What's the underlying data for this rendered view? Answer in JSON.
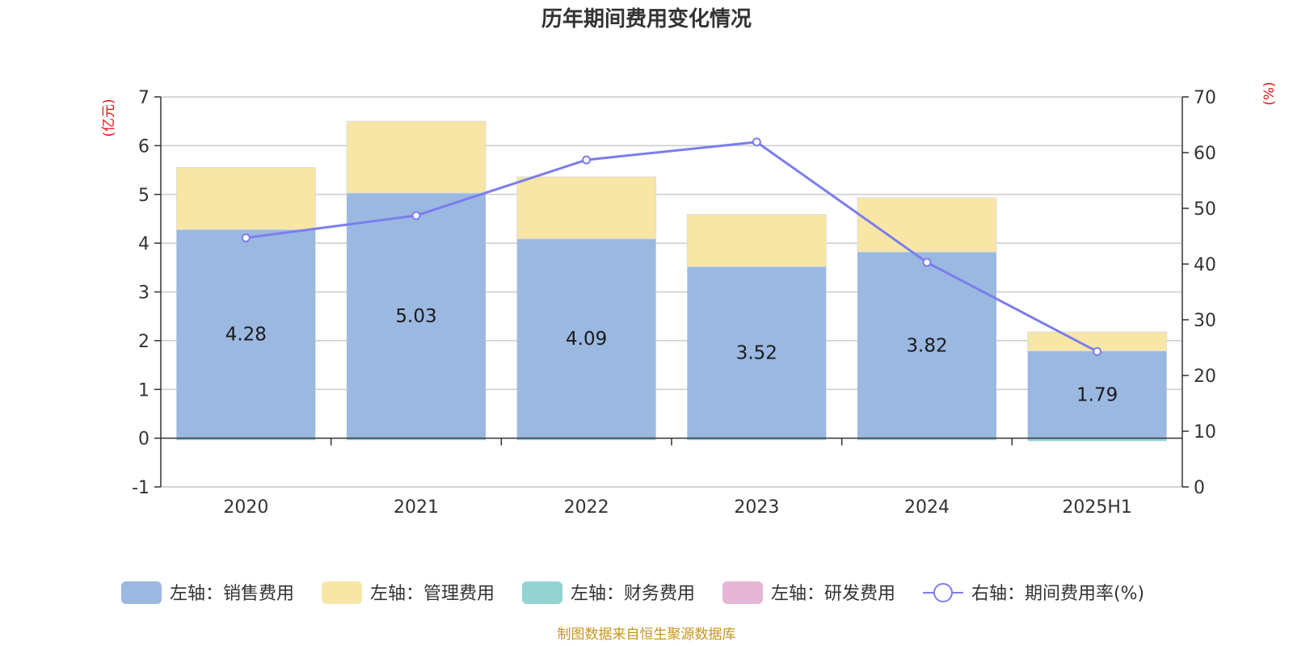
{
  "colors": {
    "sales": "#9bb8e1",
    "admin": "#f8e6a6",
    "finance": "#93d3d2",
    "rd": "#e6b6d6",
    "ratio": "#7b7ded",
    "unit": "#e11111",
    "source": "#c7941d",
    "grid": "#cccccc",
    "axis": "#333333"
  },
  "chart_data": {
    "type": "bar",
    "title": "历年期间费用变化情况",
    "categories": [
      "2020",
      "2021",
      "2022",
      "2023",
      "2024",
      "2025H1"
    ],
    "left_axis": {
      "unit": "(亿元)",
      "range": [
        -1,
        7
      ],
      "ticks": [
        "-1",
        "0",
        "1",
        "2",
        "3",
        "4",
        "5",
        "6",
        "7"
      ]
    },
    "right_axis": {
      "unit": "(%)",
      "range": [
        0,
        70
      ],
      "ticks": [
        "0",
        "10",
        "20",
        "30",
        "40",
        "50",
        "60",
        "70"
      ]
    },
    "grid": true,
    "legend_position": "bottom",
    "series": [
      {
        "name": "左轴：销售费用",
        "axis": "left",
        "stack": true,
        "values": [
          4.28,
          5.03,
          4.09,
          3.52,
          3.82,
          1.79
        ]
      },
      {
        "name": "左轴：管理费用",
        "axis": "left",
        "stack": true,
        "values": [
          1.27,
          1.47,
          1.27,
          1.07,
          1.11,
          0.39
        ]
      },
      {
        "name": "左轴：财务费用",
        "axis": "left",
        "stack": true,
        "values": [
          -0.03,
          -0.02,
          -0.01,
          -0.03,
          -0.02,
          -0.06
        ]
      },
      {
        "name": "左轴：研发费用",
        "axis": "left",
        "stack": true,
        "values": [
          0,
          0,
          0,
          0,
          0,
          0
        ]
      },
      {
        "name": "右轴：期间费用率(%)",
        "axis": "right",
        "type": "line",
        "values": [
          44.7,
          48.7,
          58.7,
          61.9,
          40.3,
          24.3
        ]
      }
    ],
    "data_labels": [
      "4.28",
      "5.03",
      "4.09",
      "3.52",
      "3.82",
      "1.79"
    ]
  },
  "footer": {
    "source": "制图数据来自恒生聚源数据库"
  }
}
